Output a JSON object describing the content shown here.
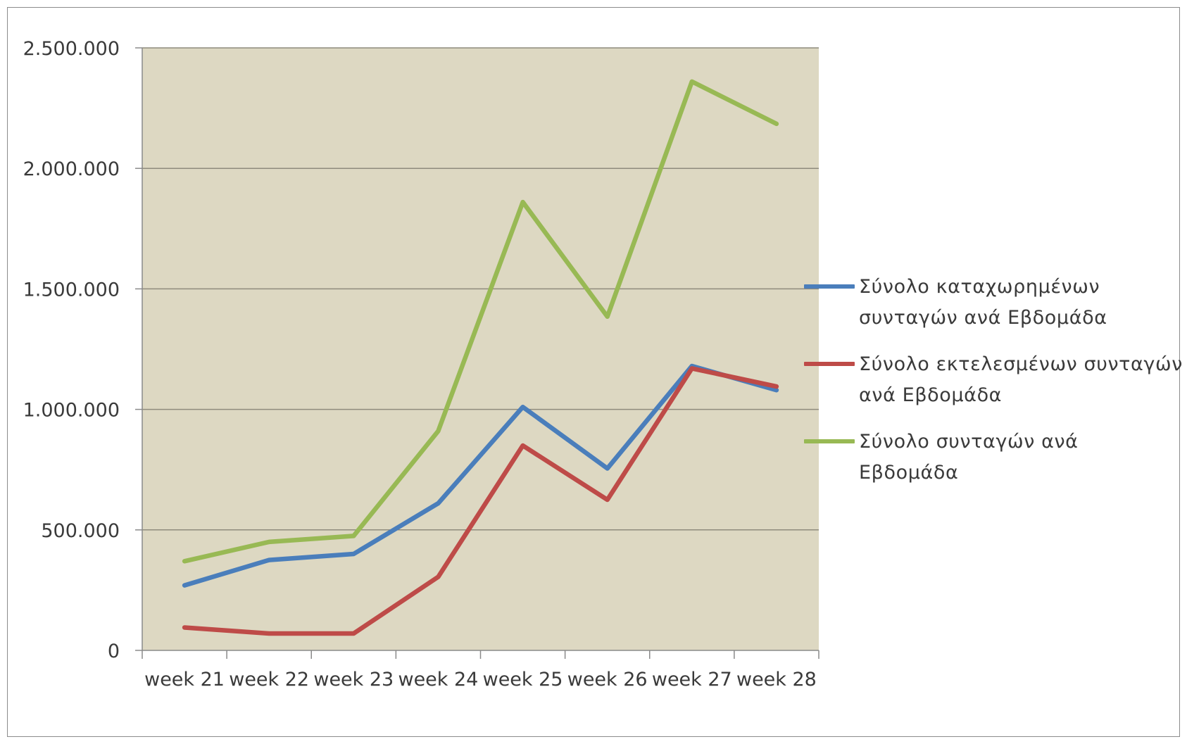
{
  "chart_data": {
    "type": "line",
    "categories": [
      "week 21",
      "week 22",
      "week 23",
      "week 24",
      "week 25",
      "week 26",
      "week 27",
      "week 28"
    ],
    "series": [
      {
        "name": "Σύνολο καταχωρημένων συνταγών ανά Εβδομάδα",
        "color": "#4a7ebb",
        "values": [
          270000,
          375000,
          400000,
          610000,
          1010000,
          755000,
          1180000,
          1080000
        ]
      },
      {
        "name": "Σύνολο εκτελεσμένων συνταγών ανά Εβδομάδα",
        "color": "#be4b48",
        "values": [
          95000,
          70000,
          70000,
          305000,
          850000,
          625000,
          1170000,
          1095000
        ]
      },
      {
        "name": "Σύνολο συνταγών ανά Εβδομάδα",
        "color": "#98b954",
        "values": [
          370000,
          450000,
          475000,
          910000,
          1860000,
          1385000,
          2360000,
          2185000
        ]
      }
    ],
    "y_ticks": [
      "0",
      "500.000",
      "1.000.000",
      "1.500.000",
      "2.000.000",
      "2.500.000"
    ],
    "ylim": [
      0,
      2500000
    ],
    "grid": true,
    "plot_background": "#ddd8c2",
    "legend_position": "right"
  }
}
